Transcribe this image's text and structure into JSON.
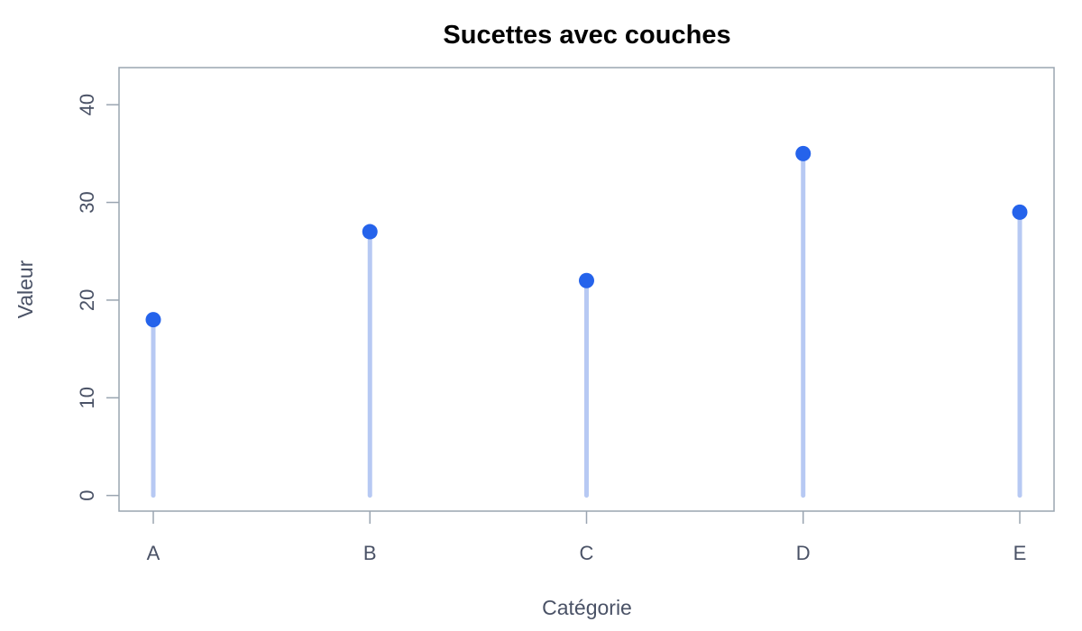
{
  "chart_data": {
    "type": "lollipop",
    "title": "Sucettes avec couches",
    "xlabel": "Catégorie",
    "ylabel": "Valeur",
    "categories": [
      "A",
      "B",
      "C",
      "D",
      "E"
    ],
    "values": [
      18,
      27,
      22,
      35,
      29
    ],
    "yticks": [
      0,
      10,
      20,
      30,
      40
    ],
    "ylim": [
      -1.6,
      43.8
    ],
    "grid": false,
    "legend": "none",
    "colors": {
      "stem": "#b7c9f3",
      "point": "#2563eb",
      "axis": "#9aa5b1",
      "text": "#4a5266"
    }
  }
}
